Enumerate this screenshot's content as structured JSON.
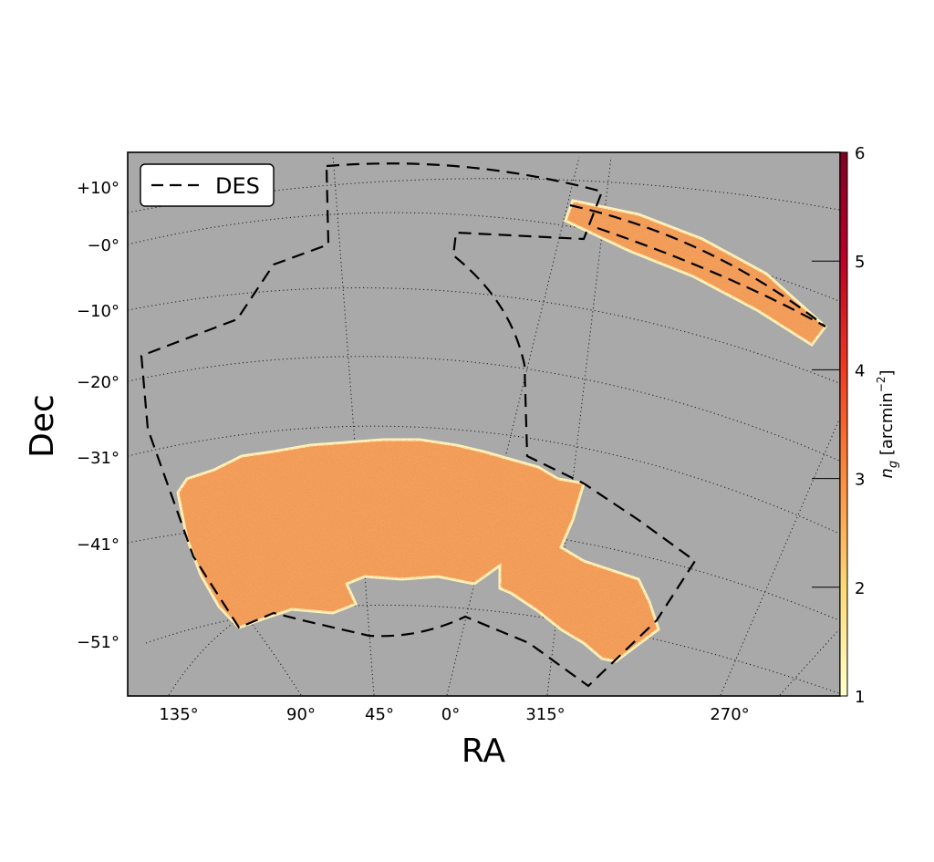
{
  "chart_data": {
    "type": "heatmap",
    "title": "",
    "xlabel": "RA",
    "ylabel": "Dec",
    "x_tick_labels": [
      "135°",
      "90°",
      "45°",
      "0°",
      "315°",
      "270°"
    ],
    "y_tick_labels": [
      "+10°",
      "−0°",
      "−10°",
      "−20°",
      "−31°",
      "−41°",
      "−51°"
    ],
    "grid": true,
    "grid_style": "dotted",
    "legend": {
      "position": "top-left",
      "entries": [
        {
          "label": "DES",
          "style": "dashed"
        }
      ]
    },
    "colorbar": {
      "label": "n_g [arcmin^−2]",
      "label_main": "n",
      "label_sub": "g",
      "label_rest": " [arcmin",
      "label_sup": "−2",
      "label_end": "]",
      "range": [
        1,
        6
      ],
      "ticks": [
        "1",
        "2",
        "3",
        "4",
        "5",
        "6"
      ],
      "colormap": "YlOrRd"
    },
    "colors": {
      "background": "#a9a9a9",
      "footprint_low": "#fde69c",
      "footprint_mid": "#f58a3c",
      "footprint_high": "#cf2d1c",
      "boundary": "#000000"
    }
  }
}
